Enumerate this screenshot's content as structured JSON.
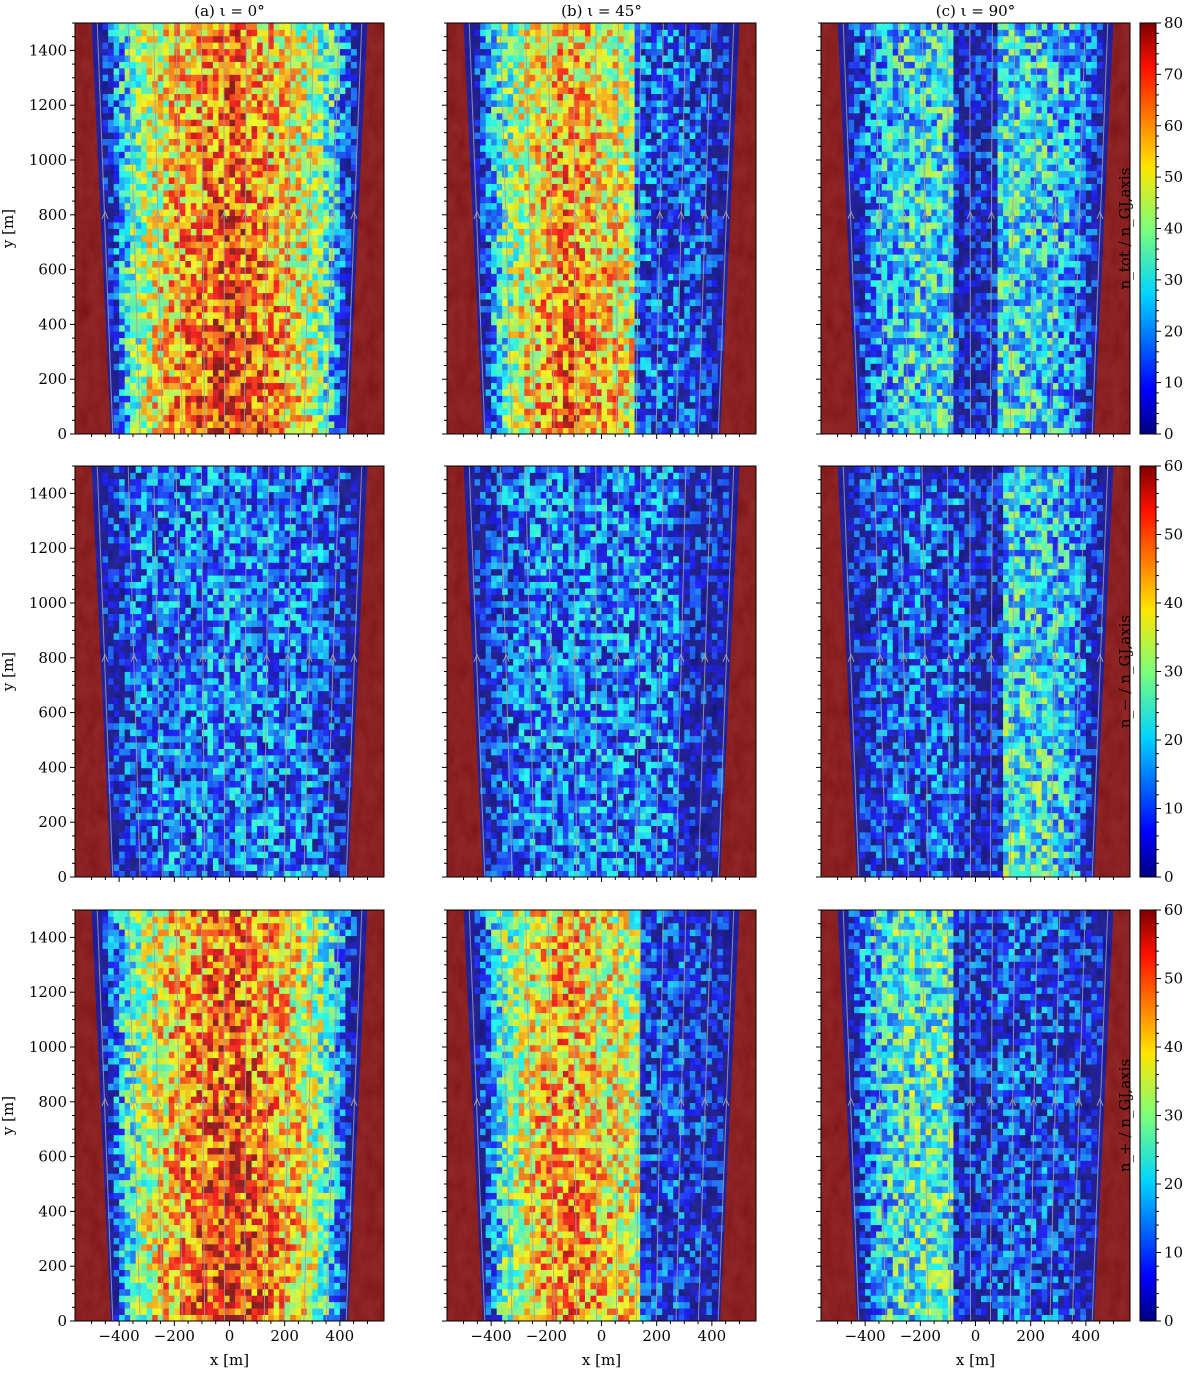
{
  "figure": {
    "columns": [
      {
        "title": "(a) ι = 0°",
        "inclination_deg": 0
      },
      {
        "title": "(b) ι = 45°",
        "inclination_deg": 45
      },
      {
        "title": "(c) ι = 90°",
        "inclination_deg": 90
      }
    ],
    "rows": [
      {
        "quantity": "n_tot",
        "colorbar_label": "n_tot / n_GJ,axis",
        "clim": [
          0,
          80
        ],
        "ticks": [
          0,
          10,
          20,
          30,
          40,
          50,
          60,
          70,
          80
        ]
      },
      {
        "quantity": "n_-",
        "colorbar_label": "n_− / n_GJ,axis",
        "clim": [
          0,
          60
        ],
        "ticks": [
          0,
          10,
          20,
          30,
          40,
          50,
          60
        ]
      },
      {
        "quantity": "n_+",
        "colorbar_label": "n_+ / n_GJ,axis",
        "clim": [
          0,
          60
        ],
        "ticks": [
          0,
          10,
          20,
          30,
          40,
          50,
          60
        ]
      }
    ],
    "xlabel": "x [m]",
    "ylabel": "y [m]",
    "colormap": "jet",
    "boundary_color": "#800000",
    "field_line_color": "#a0a0a0"
  },
  "chart_data": [
    {
      "type": "heatmap",
      "panel": "(a) ι = 0°, n_tot",
      "xlabel": "",
      "ylabel": "y [m]",
      "xlim": [
        -560,
        560
      ],
      "ylim": [
        0,
        1500
      ],
      "xticks": [
        -400,
        -200,
        0,
        200,
        400
      ],
      "yticks": [
        0,
        200,
        400,
        600,
        800,
        1000,
        1200,
        1400
      ],
      "clim": [
        0,
        80
      ],
      "colorbar_label": "n_tot / n_GJ,axis"
    },
    {
      "type": "heatmap",
      "panel": "(b) ι = 45°, n_tot",
      "xlabel": "",
      "ylabel": "",
      "xlim": [
        -560,
        560
      ],
      "ylim": [
        0,
        1500
      ],
      "clim": [
        0,
        80
      ]
    },
    {
      "type": "heatmap",
      "panel": "(c) ι = 90°, n_tot",
      "xlabel": "",
      "ylabel": "",
      "xlim": [
        -560,
        560
      ],
      "ylim": [
        0,
        1500
      ],
      "clim": [
        0,
        80
      ]
    },
    {
      "type": "heatmap",
      "panel": "(a) ι = 0°, n_−",
      "xlabel": "",
      "ylabel": "y [m]",
      "xlim": [
        -560,
        560
      ],
      "ylim": [
        0,
        1500
      ],
      "clim": [
        0,
        60
      ],
      "colorbar_label": "n_− / n_GJ,axis"
    },
    {
      "type": "heatmap",
      "panel": "(b) ι = 45°, n_−",
      "xlabel": "",
      "ylabel": "",
      "xlim": [
        -560,
        560
      ],
      "ylim": [
        0,
        1500
      ],
      "clim": [
        0,
        60
      ]
    },
    {
      "type": "heatmap",
      "panel": "(c) ι = 90°, n_−",
      "xlabel": "",
      "ylabel": "",
      "xlim": [
        -560,
        560
      ],
      "ylim": [
        0,
        1500
      ],
      "clim": [
        0,
        60
      ]
    },
    {
      "type": "heatmap",
      "panel": "(a) ι = 0°, n_+",
      "xlabel": "x [m]",
      "ylabel": "y [m]",
      "xlim": [
        -560,
        560
      ],
      "ylim": [
        0,
        1500
      ],
      "clim": [
        0,
        60
      ],
      "colorbar_label": "n_+ / n_GJ,axis"
    },
    {
      "type": "heatmap",
      "panel": "(b) ι = 45°, n_+",
      "xlabel": "x [m]",
      "ylabel": "",
      "xlim": [
        -560,
        560
      ],
      "ylim": [
        0,
        1500
      ],
      "clim": [
        0,
        60
      ]
    },
    {
      "type": "heatmap",
      "panel": "(c) ι = 90°, n_+",
      "xlabel": "x [m]",
      "ylabel": "",
      "xlim": [
        -560,
        560
      ],
      "ylim": [
        0,
        1500
      ],
      "clim": [
        0,
        60
      ]
    }
  ]
}
